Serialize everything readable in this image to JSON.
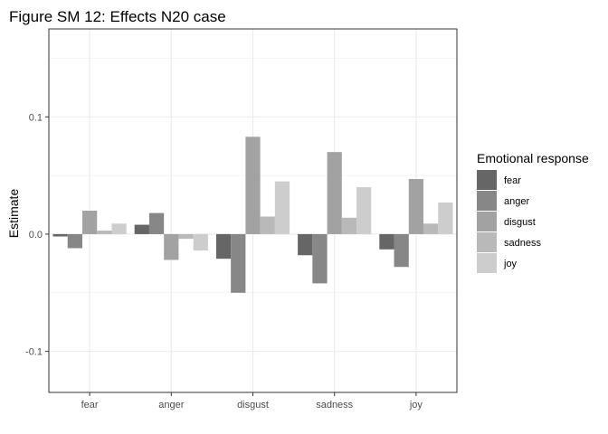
{
  "chart_data": {
    "type": "bar",
    "title": "Figure SM 12: Effects N20 case",
    "xlabel": "",
    "ylabel": "Estimate",
    "ylim": [
      -0.135,
      0.175
    ],
    "y_ticks": [
      -0.1,
      0.0,
      0.1
    ],
    "y_tick_labels": [
      "-0.1",
      "0.0",
      "0.1"
    ],
    "grid": true,
    "categories": [
      "fear",
      "anger",
      "disgust",
      "sadness",
      "joy"
    ],
    "legend": {
      "title": "Emotional response",
      "placement": "right"
    },
    "series": [
      {
        "name": "fear",
        "color": "#666666",
        "values": [
          -0.002,
          0.008,
          -0.021,
          -0.018,
          -0.013
        ]
      },
      {
        "name": "anger",
        "color": "#878787",
        "values": [
          -0.012,
          0.018,
          -0.05,
          -0.042,
          -0.028
        ]
      },
      {
        "name": "disgust",
        "color": "#a2a2a2",
        "values": [
          0.02,
          -0.022,
          0.083,
          0.07,
          0.047
        ]
      },
      {
        "name": "sadness",
        "color": "#b9b9b9",
        "values": [
          0.003,
          -0.004,
          0.015,
          0.014,
          0.009
        ]
      },
      {
        "name": "joy",
        "color": "#cdcdcd",
        "values": [
          0.009,
          -0.014,
          0.045,
          0.04,
          0.027
        ]
      }
    ]
  }
}
